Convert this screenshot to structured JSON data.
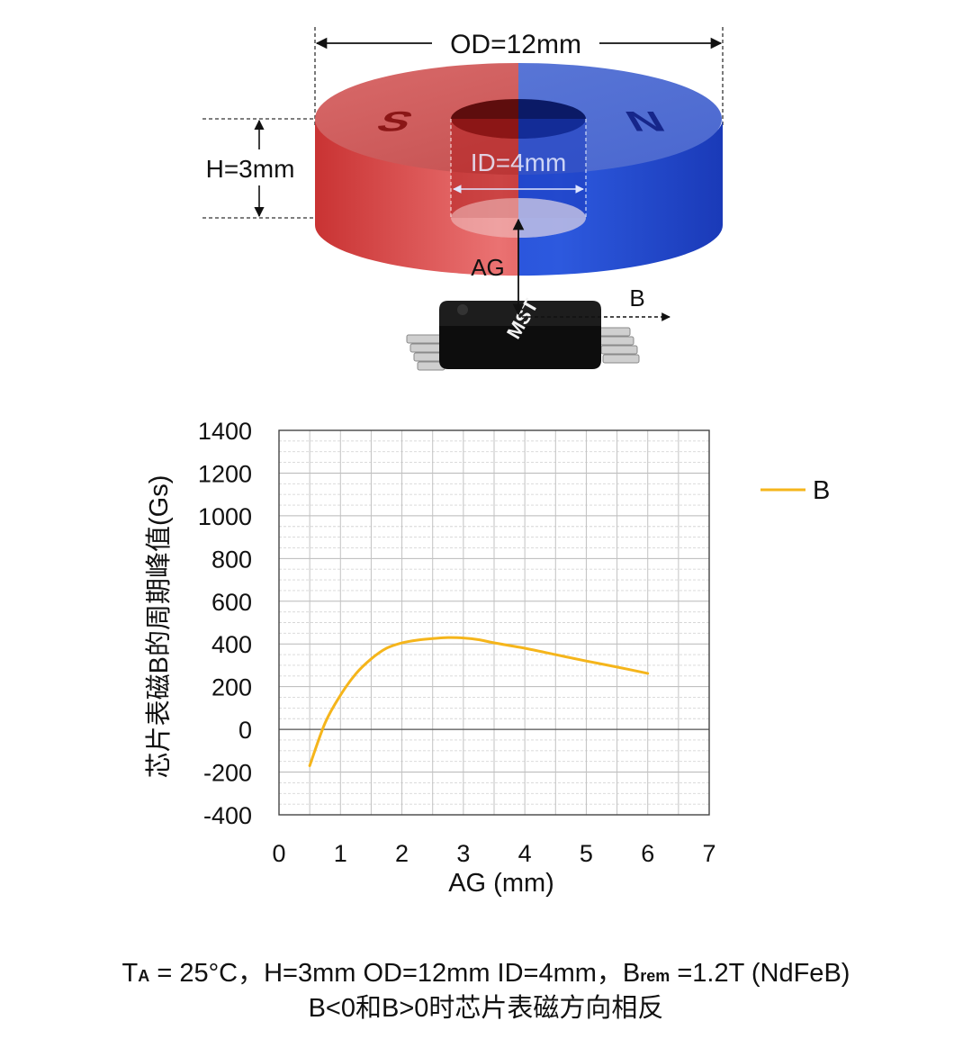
{
  "illustration": {
    "od_label": "OD=12mm",
    "h_label": "H=3mm",
    "id_label": "ID=4mm",
    "ag_label": "AG",
    "b_label": "B",
    "pole_s": "S",
    "pole_n": "N",
    "chip_logo": "MST",
    "colors": {
      "south": "#d93b3b",
      "north": "#2f54c9",
      "chip": "#141414"
    }
  },
  "chart_data": {
    "type": "line",
    "title": "",
    "xlabel": "AG (mm)",
    "ylabel": "芯片表磁B的周期峰值(Gs)",
    "xlim": [
      0,
      7
    ],
    "ylim": [
      -400,
      1400
    ],
    "xticks": [
      "0",
      "1",
      "2",
      "3",
      "4",
      "5",
      "6",
      "7"
    ],
    "yticks": [
      "1400",
      "1200",
      "1000",
      "800",
      "600",
      "400",
      "200",
      "0",
      "-200",
      "-400"
    ],
    "grid": true,
    "legend_position": "right",
    "series": [
      {
        "name": "B",
        "color": "#f5b51b",
        "x": [
          0.5,
          0.75,
          1.0,
          1.25,
          1.5,
          1.75,
          2.0,
          2.25,
          2.5,
          2.75,
          3.0,
          3.25,
          3.5,
          4.0,
          4.5,
          5.0,
          5.5,
          6.0
        ],
        "y": [
          -170,
          30,
          160,
          260,
          330,
          380,
          405,
          418,
          425,
          430,
          428,
          420,
          405,
          380,
          350,
          320,
          292,
          262
        ]
      }
    ]
  },
  "caption": {
    "line1_pre": "T",
    "line1_sub1": "A",
    "line1_mid": " = 25°C，H=3mm OD=12mm ID=4mm，B",
    "line1_sub2": "rem",
    "line1_post": " =1.2T (NdFeB)",
    "line2": "B<0和B>0时芯片表磁方向相反"
  }
}
